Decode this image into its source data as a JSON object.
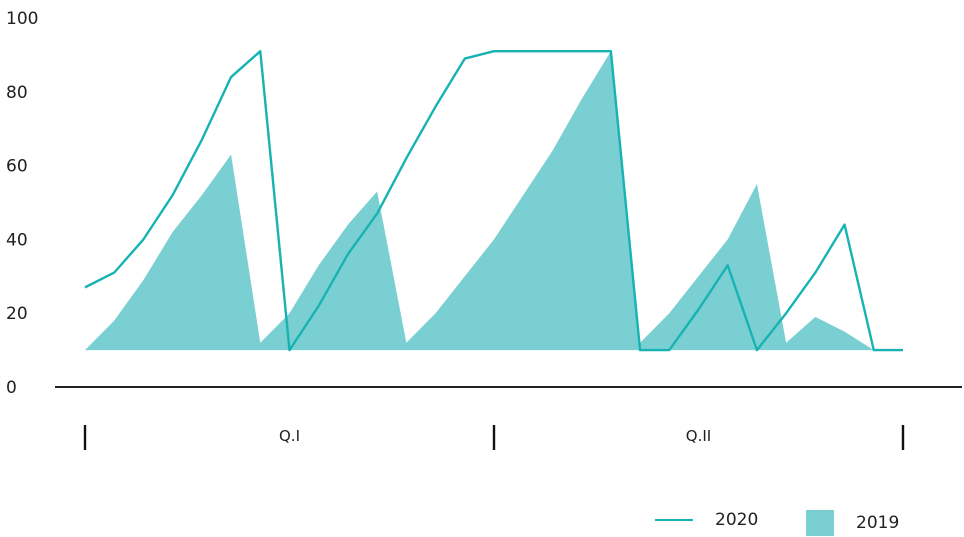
{
  "chart_data": {
    "type": "area",
    "title": "",
    "xlabel": "",
    "ylabel": "",
    "ylim": [
      0,
      100
    ],
    "yticks": [
      0,
      20,
      40,
      60,
      80,
      100
    ],
    "x": [
      0,
      1,
      2,
      3,
      4,
      5,
      6,
      7,
      8,
      9,
      10,
      11,
      12,
      13,
      14,
      15,
      16,
      17,
      18,
      19,
      20,
      21,
      22,
      23,
      24,
      25,
      26,
      27,
      28
    ],
    "groups": [
      "Q.I",
      "Q.II"
    ],
    "series": [
      {
        "name": "2020",
        "type": "line",
        "color": "#17b3b3",
        "values": [
          27,
          31,
          40,
          52,
          67,
          84,
          91,
          10,
          22,
          36,
          47,
          62,
          76,
          89,
          91,
          91,
          91,
          91,
          91,
          10,
          10,
          21,
          33,
          10,
          20,
          31,
          44,
          10,
          10
        ]
      },
      {
        "name": "2019",
        "type": "area",
        "color": "#7acfd2",
        "values": [
          10,
          18,
          29,
          42,
          52,
          63,
          12,
          20,
          33,
          44,
          53,
          12,
          20,
          30,
          40,
          52,
          64,
          78,
          91,
          12,
          20,
          30,
          40,
          55,
          12,
          19,
          15,
          10,
          10
        ]
      }
    ],
    "legend": {
      "position": "bottom-right",
      "items": [
        {
          "label": "2020",
          "symbol": "line",
          "color": "#17b3b3"
        },
        {
          "label": "2019",
          "symbol": "box",
          "color": "#7acfd2"
        }
      ]
    }
  }
}
